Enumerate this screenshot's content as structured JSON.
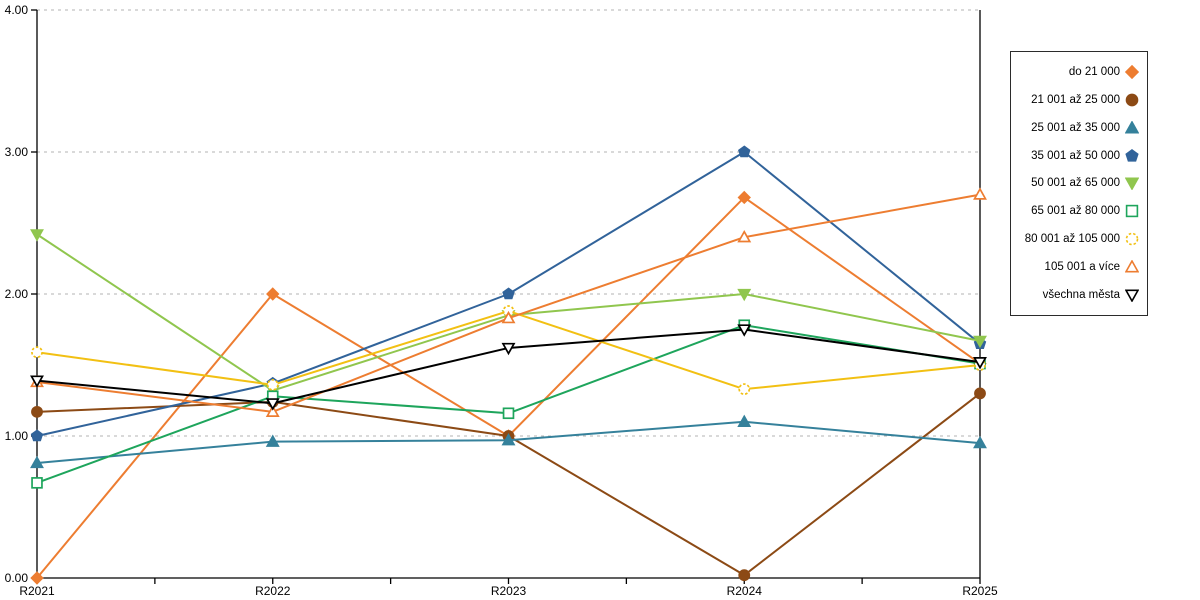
{
  "chart_data": {
    "type": "line",
    "title": "",
    "xlabel": "",
    "ylabel": "",
    "x_categories": [
      "R2021",
      "R2022",
      "R2023",
      "R2024",
      "R2025"
    ],
    "ylim": [
      0,
      4
    ],
    "ytick_labels": [
      "0.00",
      "1.00",
      "2.00",
      "3.00",
      "4.00"
    ],
    "grid": "horizontal dotted gray lines at 1.00, 2.00, 3.00, 4.00",
    "legend_position": "outside right, boxed, markers right of right-aligned labels",
    "gridline_color": "#b3b3b3",
    "axis_color": "#000000",
    "series": [
      {
        "name": "do 21 000",
        "marker": "diamond-filled",
        "color": "#ED7D31",
        "values": [
          0.0,
          2.0,
          1.0,
          2.68,
          1.51
        ]
      },
      {
        "name": "21 001 až 25 000",
        "marker": "circle-filled",
        "color": "#8C4A15",
        "values": [
          1.17,
          1.24,
          1.0,
          0.02,
          1.3
        ]
      },
      {
        "name": "25 001 až 35 000",
        "marker": "triangle-up-filled",
        "color": "#35819B",
        "values": [
          0.81,
          0.96,
          0.97,
          1.1,
          0.95
        ]
      },
      {
        "name": "35 001 až 50 000",
        "marker": "pentagon-filled",
        "color": "#31639A",
        "values": [
          1.0,
          1.37,
          2.0,
          3.0,
          1.65
        ]
      },
      {
        "name": "50 001 až 65 000",
        "marker": "triangle-down-filled",
        "color": "#90C64E",
        "values": [
          2.42,
          1.32,
          1.85,
          2.0,
          1.67
        ]
      },
      {
        "name": "65 001 až 80 000",
        "marker": "square-open",
        "color": "#1EA55C",
        "values": [
          0.67,
          1.28,
          1.16,
          1.78,
          1.51
        ]
      },
      {
        "name": "80 001 až 105 000",
        "marker": "circle-open-dashed",
        "color": "#F2C013",
        "values": [
          1.59,
          1.36,
          1.88,
          1.33,
          1.5
        ]
      },
      {
        "name": "105 001 a více",
        "marker": "triangle-up-open",
        "color": "#ED7D31",
        "values": [
          1.38,
          1.17,
          1.83,
          2.4,
          2.7
        ]
      },
      {
        "name": "všechna města",
        "marker": "triangle-down-open",
        "color": "#000000",
        "values": [
          1.39,
          1.23,
          1.62,
          1.75,
          1.52
        ]
      }
    ]
  }
}
